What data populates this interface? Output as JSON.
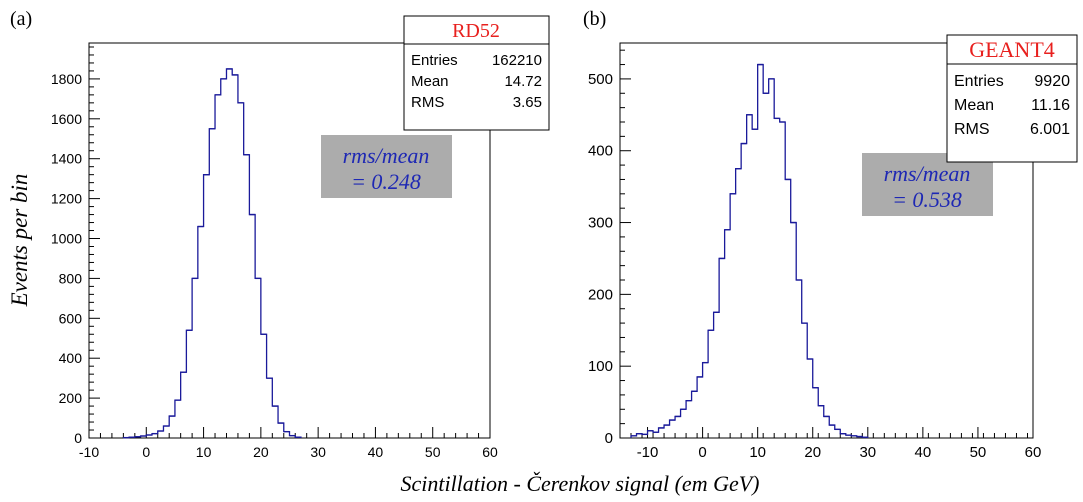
{
  "figure": {
    "ylabel": "Events per bin",
    "xlabel": "Scintillation - Čerenkov signal (em GeV)"
  },
  "chart_data": [
    {
      "type": "histogram",
      "panel_label": "(a)",
      "xlim": [
        -10,
        60
      ],
      "ylim": [
        0,
        1980
      ],
      "xticks": [
        -10,
        0,
        10,
        20,
        30,
        40,
        50,
        60
      ],
      "yticks": [
        0,
        200,
        400,
        600,
        800,
        1000,
        1200,
        1400,
        1600,
        1800
      ],
      "line_color": "#1a1a9a",
      "stats_box": {
        "title": "RD52",
        "title_color": "#e8201e",
        "rows": [
          {
            "label": "Entries",
            "value": "162210"
          },
          {
            "label": "Mean",
            "value": "14.72"
          },
          {
            "label": "RMS",
            "value": "3.65"
          }
        ]
      },
      "annotation": {
        "line1": "rms/mean",
        "line2": "= 0.248",
        "bg_color": "#acacac",
        "text_color": "#1e28b4"
      },
      "bin_edges": [
        -4,
        -3,
        -2,
        -1,
        0,
        1,
        2,
        3,
        4,
        5,
        6,
        7,
        8,
        9,
        10,
        11,
        12,
        13,
        14,
        15,
        16,
        17,
        18,
        19,
        20,
        21,
        22,
        23,
        24,
        25,
        26,
        27
      ],
      "values": [
        2,
        4,
        6,
        10,
        15,
        22,
        35,
        60,
        110,
        190,
        330,
        540,
        800,
        1060,
        1320,
        1550,
        1720,
        1800,
        1850,
        1820,
        1680,
        1420,
        1120,
        800,
        520,
        300,
        160,
        75,
        32,
        12,
        4
      ]
    },
    {
      "type": "histogram",
      "panel_label": "(b)",
      "xlim": [
        -15,
        60
      ],
      "ylim": [
        0,
        550
      ],
      "xticks": [
        -10,
        0,
        10,
        20,
        30,
        40,
        50,
        60
      ],
      "yticks": [
        0,
        100,
        200,
        300,
        400,
        500
      ],
      "line_color": "#1a1a9a",
      "stats_box": {
        "title": "GEANT4",
        "title_color": "#e8201e",
        "rows": [
          {
            "label": "Entries",
            "value": "9920"
          },
          {
            "label": "Mean",
            "value": "11.16"
          },
          {
            "label": "RMS",
            "value": "6.001"
          }
        ]
      },
      "annotation": {
        "line1": "rms/mean",
        "line2": "= 0.538",
        "bg_color": "#acacac",
        "text_color": "#1e28b4"
      },
      "bin_edges": [
        -13,
        -12,
        -11,
        -10,
        -9,
        -8,
        -7,
        -6,
        -5,
        -4,
        -3,
        -2,
        -1,
        0,
        1,
        2,
        3,
        4,
        5,
        6,
        7,
        8,
        9,
        10,
        11,
        12,
        13,
        14,
        15,
        16,
        17,
        18,
        19,
        20,
        21,
        22,
        23,
        24,
        25,
        26,
        27,
        28,
        29,
        30
      ],
      "values": [
        3,
        6,
        5,
        10,
        8,
        14,
        18,
        25,
        30,
        40,
        52,
        65,
        85,
        105,
        150,
        175,
        250,
        290,
        340,
        375,
        410,
        450,
        430,
        520,
        480,
        500,
        445,
        440,
        360,
        300,
        220,
        160,
        110,
        70,
        45,
        30,
        18,
        12,
        6,
        4,
        3,
        2,
        1
      ]
    }
  ]
}
